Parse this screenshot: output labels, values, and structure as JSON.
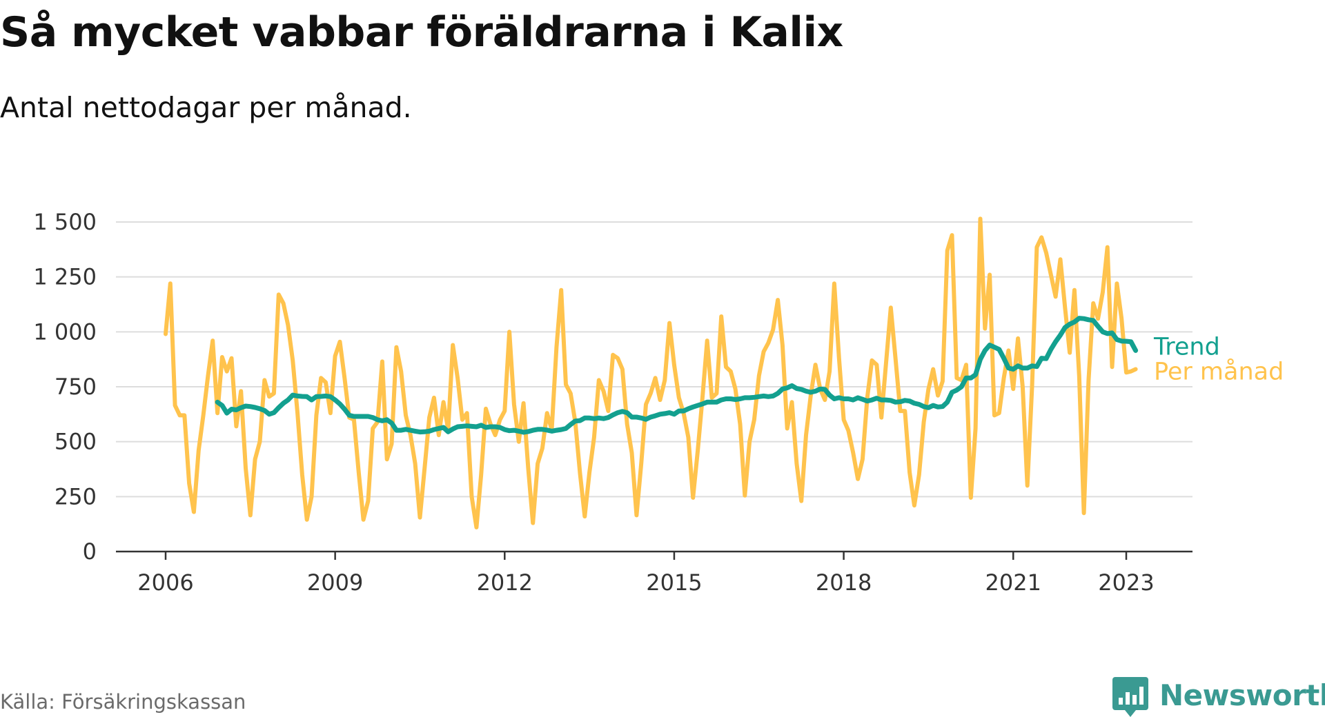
{
  "title": "Så mycket vabbar föräldrarna i Kalix",
  "subtitle": "Antal nettodagar per månad.",
  "source": "Källa: Försäkringskassan",
  "brand": "Newsworthy",
  "colors": {
    "per_manad": "#ffc34d",
    "trend": "#13a08f",
    "grid": "#dddddd",
    "axis": "#333333",
    "brand": "#3a9a92"
  },
  "icons": {
    "logo": "bar-chart-badge-icon"
  },
  "chart_data": {
    "type": "line",
    "x_start": "2006-01",
    "interval": "month",
    "ylim": [
      0,
      1500
    ],
    "yticks": [
      0,
      250,
      500,
      750,
      1000,
      1250,
      1500
    ],
    "ytick_labels": [
      "0",
      "250",
      "500",
      "750",
      "1 000",
      "1 250",
      "1 500"
    ],
    "xticks": [
      "2006",
      "2009",
      "2012",
      "2015",
      "2018",
      "2021",
      "2023"
    ],
    "grid": true,
    "legend_placement": "right-end-of-lines",
    "series": [
      {
        "name": "Trend",
        "start": "2006-12",
        "values": [
          680,
          665,
          630,
          648,
          645,
          655,
          662,
          660,
          656,
          650,
          642,
          625,
          632,
          655,
          675,
          690,
          712,
          708,
          706,
          705,
          690,
          705,
          706,
          708,
          705,
          690,
          672,
          648,
          620,
          615,
          615,
          615,
          615,
          610,
          600,
          595,
          600,
          585,
          552,
          552,
          556,
          552,
          548,
          544,
          545,
          548,
          555,
          560,
          565,
          545,
          558,
          568,
          570,
          572,
          570,
          568,
          575,
          565,
          568,
          568,
          565,
          555,
          550,
          552,
          548,
          543,
          546,
          552,
          556,
          556,
          553,
          548,
          552,
          555,
          560,
          578,
          594,
          596,
          608,
          608,
          605,
          608,
          605,
          610,
          622,
          632,
          638,
          632,
          612,
          612,
          608,
          602,
          612,
          618,
          625,
          628,
          632,
          625,
          640,
          640,
          650,
          658,
          665,
          672,
          680,
          680,
          680,
          690,
          695,
          695,
          692,
          695,
          700,
          700,
          702,
          705,
          708,
          705,
          708,
          720,
          740,
          745,
          755,
          742,
          738,
          730,
          725,
          730,
          740,
          738,
          712,
          695,
          700,
          695,
          695,
          690,
          700,
          693,
          685,
          690,
          698,
          690,
          690,
          688,
          680,
          682,
          688,
          685,
          675,
          670,
          660,
          655,
          665,
          658,
          660,
          680,
          725,
          735,
          750,
          790,
          790,
          805,
          875,
          915,
          940,
          930,
          920,
          880,
          835,
          830,
          845,
          835,
          835,
          845,
          842,
          880,
          878,
          920,
          955,
          985,
          1020,
          1035,
          1045,
          1062,
          1060,
          1055,
          1052,
          1025,
          1000,
          992,
          995,
          965,
          958,
          957,
          955,
          915
        ]
      },
      {
        "name": "Per månad",
        "start": "2006-01",
        "values": [
          990,
          1220,
          665,
          620,
          620,
          310,
          180,
          460,
          620,
          800,
          960,
          630,
          885,
          820,
          880,
          570,
          730,
          380,
          165,
          420,
          500,
          780,
          705,
          720,
          1170,
          1130,
          1030,
          870,
          630,
          350,
          145,
          250,
          620,
          790,
          770,
          630,
          890,
          955,
          790,
          610,
          600,
          360,
          145,
          230,
          560,
          590,
          865,
          420,
          490,
          930,
          820,
          620,
          530,
          400,
          155,
          380,
          610,
          700,
          530,
          680,
          555,
          940,
          790,
          600,
          630,
          250,
          110,
          350,
          650,
          580,
          530,
          600,
          640,
          1000,
          670,
          500,
          675,
          380,
          130,
          400,
          470,
          630,
          555,
          930,
          1190,
          760,
          720,
          590,
          355,
          160,
          360,
          520,
          780,
          730,
          640,
          895,
          880,
          830,
          580,
          450,
          165,
          400,
          670,
          720,
          790,
          690,
          780,
          1040,
          850,
          700,
          630,
          520,
          245,
          460,
          700,
          960,
          700,
          720,
          1070,
          840,
          820,
          740,
          580,
          255,
          500,
          600,
          800,
          910,
          950,
          1010,
          1145,
          940,
          560,
          680,
          400,
          230,
          530,
          710,
          850,
          740,
          690,
          820,
          1220,
          880,
          600,
          550,
          450,
          330,
          420,
          700,
          870,
          850,
          610,
          860,
          1110,
          880,
          640,
          640,
          360,
          210,
          350,
          590,
          740,
          830,
          710,
          775,
          1370,
          1440,
          790,
          780,
          850,
          245,
          560,
          1515,
          1015,
          1260,
          620,
          630,
          790,
          915,
          740,
          970,
          750,
          300,
          750,
          1385,
          1430,
          1360,
          1260,
          1160,
          1330,
          1110,
          905,
          1190,
          800,
          175,
          780,
          1130,
          1060,
          1180,
          1385,
          840,
          1220,
          1060,
          815,
          820,
          830
        ]
      }
    ]
  }
}
